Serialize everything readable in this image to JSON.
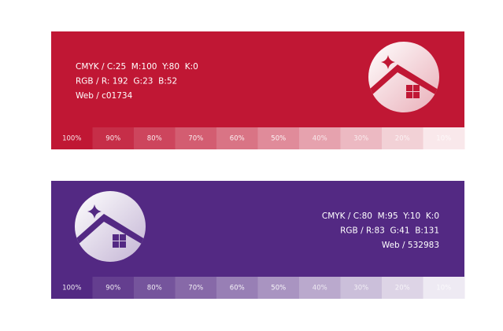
{
  "panels": [
    {
      "color": "#c01734",
      "align": "left",
      "lines": [
        "CMYK / C:25  M:100  Y:80  K:0",
        "RGB / R: 192  G:23  B:52",
        "Web / c01734"
      ],
      "tints": [
        "100%",
        "90%",
        "80%",
        "70%",
        "60%",
        "50%",
        "40%",
        "30%",
        "20%",
        "10%"
      ]
    },
    {
      "color": "#532983",
      "align": "right",
      "lines": [
        "CMYK / C:80  M:95  Y:10  K:0",
        "RGB / R:83  G:41  B:131",
        "Web / 532983"
      ],
      "tints": [
        "100%",
        "90%",
        "80%",
        "70%",
        "60%",
        "50%",
        "40%",
        "30%",
        "20%",
        "10%"
      ]
    }
  ]
}
